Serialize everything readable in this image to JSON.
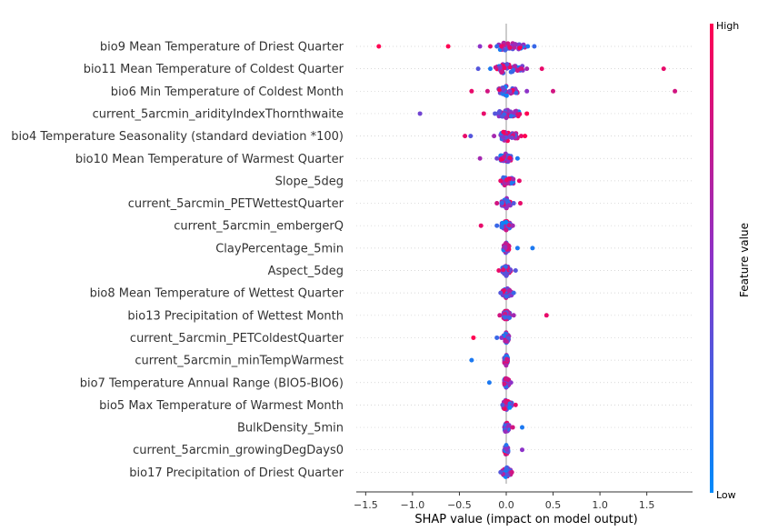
{
  "chart_data": {
    "type": "scatter",
    "title": "",
    "xlabel": "SHAP value (impact on model output)",
    "xlim": [
      -1.5,
      2.0
    ],
    "xticks": [
      -1.5,
      -1.0,
      -0.5,
      0.0,
      0.5,
      1.0,
      1.5
    ],
    "xtick_labels": [
      "−1.5",
      "−1.0",
      "−0.5",
      "0.0",
      "0.5",
      "1.0",
      "1.5"
    ],
    "colorbar": {
      "title": "Feature value",
      "high_label": "High",
      "low_label": "Low",
      "low_color": "#008bfb",
      "high_color": "#ff0052"
    },
    "features": [
      {
        "name": "bio9 Mean Temperature of Driest Quarter",
        "outliers": [
          [
            -1.36,
            1.0
          ],
          [
            -0.62,
            1.0
          ],
          [
            -0.28,
            0.5
          ],
          [
            -0.17,
            0.9
          ],
          [
            -0.1,
            0.2
          ],
          [
            -0.05,
            0.9
          ],
          [
            0.23,
            0.1
          ],
          [
            0.3,
            0.2
          ]
        ],
        "core": [
          -0.08,
          0.2
        ]
      },
      {
        "name": "bio11 Mean Temperature of Coldest Quarter",
        "outliers": [
          [
            -0.3,
            0.3
          ],
          [
            -0.17,
            0.1
          ],
          [
            0.15,
            0.8
          ],
          [
            0.22,
            0.6
          ],
          [
            0.38,
            0.9
          ],
          [
            1.68,
            0.9
          ]
        ],
        "core": [
          -0.12,
          0.18
        ]
      },
      {
        "name": "bio6 Min Temperature of Coldest Month",
        "outliers": [
          [
            -0.37,
            0.9
          ],
          [
            -0.2,
            0.8
          ],
          [
            0.22,
            0.5
          ],
          [
            0.5,
            0.8
          ],
          [
            1.8,
            0.8
          ]
        ],
        "core": [
          -0.08,
          0.12
        ]
      },
      {
        "name": "current_5arcmin_aridityIndexThornthwaite",
        "outliers": [
          [
            -0.92,
            0.4
          ],
          [
            -0.24,
            0.9
          ],
          [
            -0.12,
            0.3
          ],
          [
            0.22,
            1.0
          ]
        ],
        "core": [
          -0.08,
          0.15
        ]
      },
      {
        "name": "bio4 Temperature Seasonality (standard deviation *100)",
        "outliers": [
          [
            -0.44,
            0.9
          ],
          [
            -0.38,
            0.3
          ],
          [
            -0.13,
            0.6
          ],
          [
            0.16,
            0.9
          ],
          [
            0.2,
            1.0
          ]
        ],
        "core": [
          -0.06,
          0.12
        ]
      },
      {
        "name": "bio10 Mean Temperature of Warmest Quarter",
        "outliers": [
          [
            -0.28,
            0.6
          ],
          [
            -0.1,
            0.4
          ],
          [
            0.12,
            0.1
          ]
        ],
        "core": [
          -0.06,
          0.06
        ]
      },
      {
        "name": "Slope_5deg",
        "outliers": [
          [
            -0.06,
            0.9
          ],
          [
            0.14,
            0.9
          ]
        ],
        "core": [
          -0.04,
          0.08
        ]
      },
      {
        "name": "current_5arcmin_PETWettestQuarter",
        "outliers": [
          [
            -0.1,
            0.8
          ],
          [
            0.08,
            0.3
          ],
          [
            0.15,
            0.9
          ]
        ],
        "core": [
          -0.05,
          0.05
        ]
      },
      {
        "name": "current_5arcmin_embergerQ",
        "outliers": [
          [
            -0.27,
            0.9
          ],
          [
            -0.1,
            0.2
          ],
          [
            0.07,
            0.6
          ]
        ],
        "core": [
          -0.05,
          0.05
        ]
      },
      {
        "name": "ClayPercentage_5min",
        "outliers": [
          [
            0.12,
            0.1
          ],
          [
            0.28,
            0.1
          ]
        ],
        "core": [
          -0.03,
          0.03
        ]
      },
      {
        "name": "Aspect_5deg",
        "outliers": [
          [
            -0.08,
            0.9
          ],
          [
            0.1,
            0.3
          ]
        ],
        "core": [
          -0.04,
          0.05
        ]
      },
      {
        "name": "bio8 Mean Temperature of Wettest Quarter",
        "outliers": [
          [
            -0.06,
            0.3
          ],
          [
            0.08,
            0.2
          ]
        ],
        "core": [
          -0.04,
          0.06
        ]
      },
      {
        "name": "bio13 Precipitation of Wettest Month",
        "outliers": [
          [
            -0.07,
            0.8
          ],
          [
            0.08,
            0.6
          ],
          [
            0.43,
            0.9
          ]
        ],
        "core": [
          -0.03,
          0.04
        ]
      },
      {
        "name": "current_5arcmin_PETColdestQuarter",
        "outliers": [
          [
            -0.35,
            1.0
          ],
          [
            -0.1,
            0.2
          ],
          [
            -0.05,
            0.5
          ]
        ],
        "core": [
          -0.03,
          0.03
        ]
      },
      {
        "name": "current_5arcmin_minTempWarmest",
        "outliers": [
          [
            -0.37,
            0.1
          ]
        ],
        "core": [
          -0.02,
          0.02
        ]
      },
      {
        "name": "bio7 Temperature Annual Range (BIO5-BIO6)",
        "outliers": [
          [
            -0.18,
            0.1
          ],
          [
            0.05,
            0.5
          ]
        ],
        "core": [
          -0.02,
          0.03
        ]
      },
      {
        "name": "bio5 Max Temperature of Warmest Month",
        "outliers": [
          [
            -0.04,
            0.3
          ],
          [
            0.1,
            0.9
          ]
        ],
        "core": [
          -0.03,
          0.06
        ]
      },
      {
        "name": "BulkDensity_5min",
        "outliers": [
          [
            0.07,
            0.8
          ],
          [
            0.17,
            0.1
          ]
        ],
        "core": [
          -0.02,
          0.03
        ]
      },
      {
        "name": "current_5arcmin_growingDegDays0",
        "outliers": [
          [
            0.17,
            0.5
          ]
        ],
        "core": [
          -0.02,
          0.02
        ]
      },
      {
        "name": "bio17 Precipitation of Driest Quarter",
        "outliers": [
          [
            -0.06,
            0.3
          ],
          [
            0.06,
            0.8
          ]
        ],
        "core": [
          -0.04,
          0.05
        ]
      }
    ]
  }
}
